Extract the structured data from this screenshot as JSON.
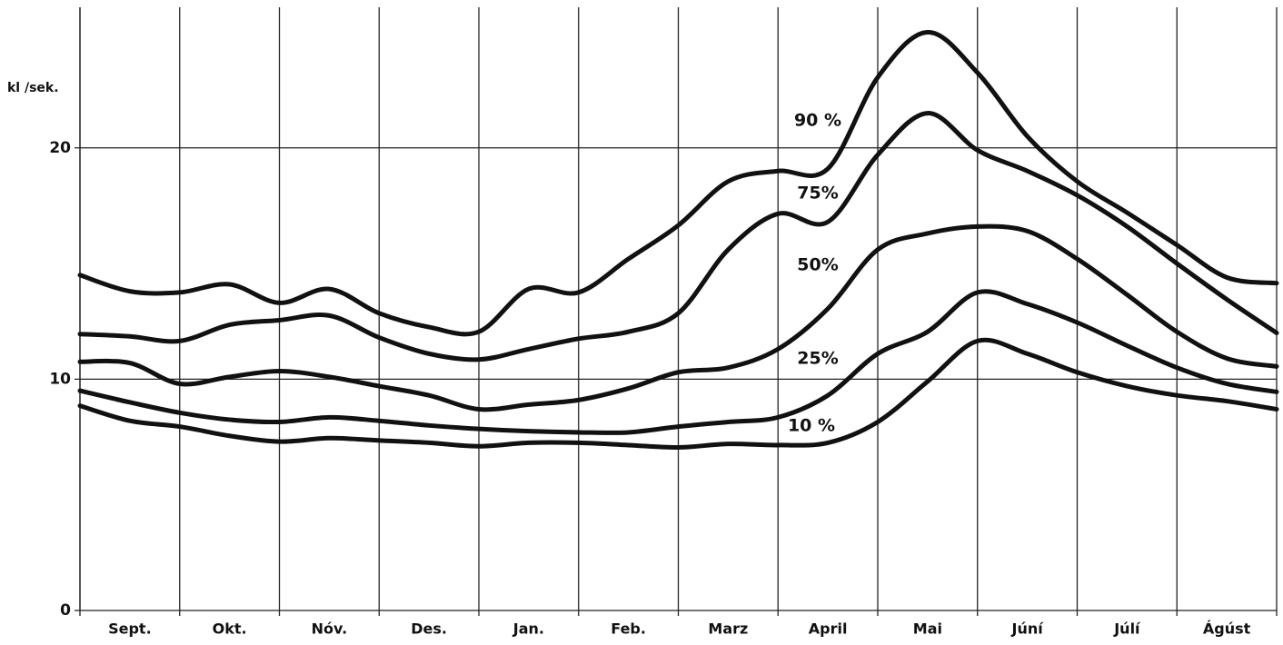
{
  "chart_data": {
    "type": "line",
    "y_label": "kl /sek.",
    "categories": [
      "Sept.",
      "Okt.",
      "Nóv.",
      "Des.",
      "Jan.",
      "Feb.",
      "Marz",
      "April",
      "Mai",
      "Júní",
      "Júlí",
      "Ágúst"
    ],
    "x": [
      0,
      0.5,
      1,
      1.5,
      2,
      2.5,
      3,
      3.5,
      4,
      4.5,
      5,
      5.5,
      6,
      6.5,
      7,
      7.5,
      8,
      8.5,
      9,
      9.5,
      10,
      10.5,
      11,
      11.5,
      12
    ],
    "xlim": [
      0,
      12
    ],
    "ylim": [
      0,
      26
    ],
    "yticks": [
      0,
      10,
      20
    ],
    "grid": true,
    "series": [
      {
        "name": "90 %",
        "color": "#111111",
        "values": [
          14.5,
          13.8,
          13.75,
          14.1,
          13.3,
          13.9,
          12.85,
          12.25,
          12.05,
          13.9,
          13.75,
          15.2,
          16.65,
          18.55,
          19.0,
          19.1,
          23.05,
          25.0,
          23.25,
          20.5,
          18.55,
          17.2,
          15.8,
          14.4,
          14.15
        ]
      },
      {
        "name": "75%",
        "color": "#111111",
        "values": [
          11.95,
          11.85,
          11.65,
          12.35,
          12.55,
          12.75,
          11.8,
          11.1,
          10.85,
          11.3,
          11.75,
          12.05,
          12.85,
          15.6,
          17.15,
          16.8,
          19.7,
          21.5,
          19.9,
          19.0,
          17.95,
          16.6,
          15.0,
          13.45,
          12.0
        ]
      },
      {
        "name": "50%",
        "color": "#111111",
        "values": [
          10.75,
          10.7,
          9.8,
          10.1,
          10.35,
          10.1,
          9.7,
          9.3,
          8.7,
          8.9,
          9.1,
          9.6,
          10.3,
          10.5,
          11.3,
          13.05,
          15.6,
          16.3,
          16.6,
          16.4,
          15.2,
          13.65,
          12.05,
          10.9,
          10.55
        ]
      },
      {
        "name": "25%",
        "color": "#111111",
        "values": [
          9.5,
          9.0,
          8.55,
          8.25,
          8.15,
          8.35,
          8.2,
          8.0,
          7.85,
          7.75,
          7.7,
          7.7,
          7.95,
          8.15,
          8.35,
          9.3,
          11.1,
          12.05,
          13.75,
          13.25,
          12.45,
          11.45,
          10.5,
          9.8,
          9.45
        ]
      },
      {
        "name": "10 %",
        "color": "#111111",
        "values": [
          8.85,
          8.2,
          7.95,
          7.55,
          7.3,
          7.45,
          7.35,
          7.25,
          7.1,
          7.25,
          7.25,
          7.15,
          7.05,
          7.2,
          7.15,
          7.25,
          8.15,
          9.9,
          11.65,
          11.1,
          10.3,
          9.7,
          9.3,
          9.05,
          8.7
        ]
      }
    ]
  }
}
